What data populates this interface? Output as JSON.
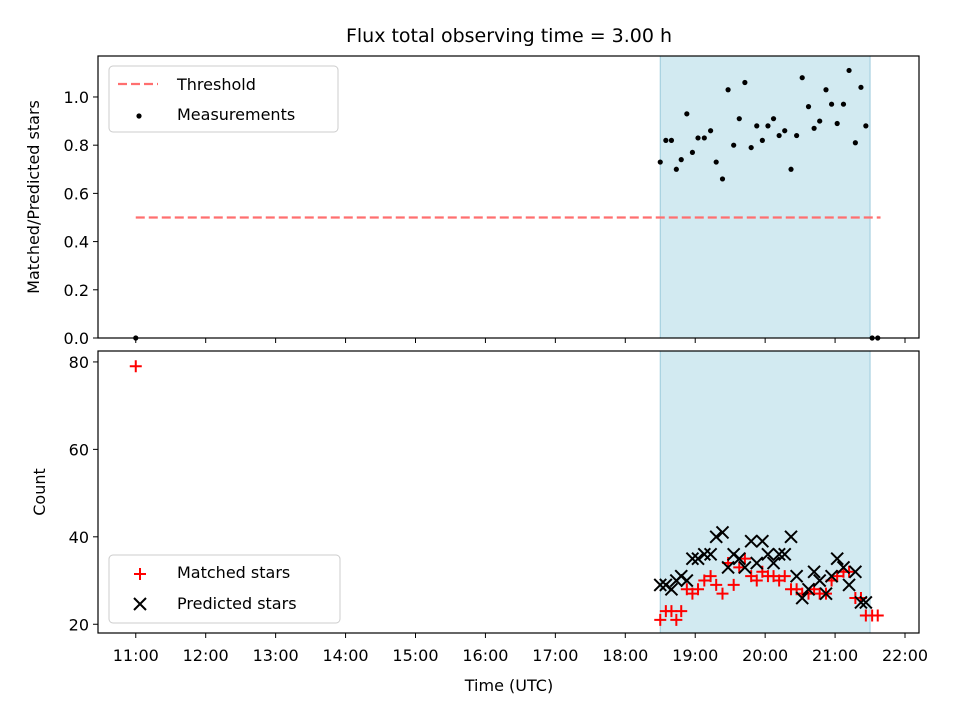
{
  "chart_data": {
    "title": "Flux total observing time = 3.00 h",
    "xlabel": "Time (UTC)",
    "x_tick_labels": [
      "11:00",
      "12:00",
      "13:00",
      "14:00",
      "15:00",
      "16:00",
      "17:00",
      "18:00",
      "19:00",
      "20:00",
      "21:00",
      "22:00"
    ],
    "x_tick_hours": [
      11,
      12,
      13,
      14,
      15,
      16,
      17,
      18,
      19,
      20,
      21,
      22
    ],
    "xlim_hours": [
      10.46,
      22.2
    ],
    "shaded_span_hours": [
      18.5,
      21.5
    ],
    "shaded_color": "#add8e6",
    "panels": [
      {
        "type": "scatter",
        "ylabel": "Matched/Predicted stars",
        "ylim": [
          0,
          1.17
        ],
        "y_ticks": [
          0.0,
          0.2,
          0.4,
          0.6,
          0.8,
          1.0
        ],
        "y_tick_labels": [
          "0.0",
          "0.2",
          "0.4",
          "0.6",
          "0.8",
          "1.0"
        ],
        "legend": {
          "location": "top-left",
          "entries": [
            "Threshold",
            "Measurements"
          ]
        },
        "threshold": {
          "name": "Threshold",
          "value": 0.5,
          "x_range_hours": [
            11.0,
            21.65
          ],
          "color": "#ff6f6f",
          "style": "dashed"
        },
        "series": [
          {
            "name": "Measurements",
            "marker": "dot",
            "color": "#000000",
            "points": [
              [
                11.0,
                0.0
              ],
              [
                18.5,
                0.73
              ],
              [
                18.58,
                0.82
              ],
              [
                18.66,
                0.82
              ],
              [
                18.73,
                0.7
              ],
              [
                18.8,
                0.74
              ],
              [
                18.88,
                0.93
              ],
              [
                18.96,
                0.77
              ],
              [
                19.04,
                0.83
              ],
              [
                19.13,
                0.83
              ],
              [
                19.22,
                0.86
              ],
              [
                19.3,
                0.73
              ],
              [
                19.39,
                0.66
              ],
              [
                19.47,
                1.03
              ],
              [
                19.55,
                0.8
              ],
              [
                19.63,
                0.91
              ],
              [
                19.71,
                1.06
              ],
              [
                19.8,
                0.79
              ],
              [
                19.88,
                0.88
              ],
              [
                19.96,
                0.82
              ],
              [
                20.04,
                0.88
              ],
              [
                20.12,
                0.91
              ],
              [
                20.2,
                0.84
              ],
              [
                20.28,
                0.86
              ],
              [
                20.37,
                0.7
              ],
              [
                20.45,
                0.84
              ],
              [
                20.53,
                1.08
              ],
              [
                20.62,
                0.96
              ],
              [
                20.7,
                0.87
              ],
              [
                20.78,
                0.9
              ],
              [
                20.87,
                1.03
              ],
              [
                20.95,
                0.97
              ],
              [
                21.03,
                0.89
              ],
              [
                21.12,
                0.97
              ],
              [
                21.2,
                1.11
              ],
              [
                21.29,
                0.81
              ],
              [
                21.37,
                1.04
              ],
              [
                21.44,
                0.88
              ],
              [
                21.53,
                0.0
              ],
              [
                21.61,
                0.0
              ]
            ]
          }
        ]
      },
      {
        "type": "scatter",
        "ylabel": "Count",
        "ylim": [
          18,
          82.5
        ],
        "y_ticks": [
          20,
          40,
          60,
          80
        ],
        "y_tick_labels": [
          "20",
          "40",
          "60",
          "80"
        ],
        "legend": {
          "location": "bottom-left",
          "entries": [
            "Matched stars",
            "Predicted stars"
          ]
        },
        "series": [
          {
            "name": "Matched stars",
            "marker": "plus",
            "color": "#ff0000",
            "points": [
              [
                11.0,
                79
              ],
              [
                18.5,
                21
              ],
              [
                18.58,
                23
              ],
              [
                18.66,
                23
              ],
              [
                18.73,
                21
              ],
              [
                18.8,
                23
              ],
              [
                18.88,
                28
              ],
              [
                18.96,
                27
              ],
              [
                19.04,
                28
              ],
              [
                19.13,
                30
              ],
              [
                19.22,
                31
              ],
              [
                19.3,
                29
              ],
              [
                19.39,
                27
              ],
              [
                19.47,
                34
              ],
              [
                19.55,
                29
              ],
              [
                19.63,
                33
              ],
              [
                19.71,
                35
              ],
              [
                19.8,
                31
              ],
              [
                19.88,
                30
              ],
              [
                19.96,
                32
              ],
              [
                20.04,
                31
              ],
              [
                20.12,
                31
              ],
              [
                20.2,
                30
              ],
              [
                20.28,
                31
              ],
              [
                20.37,
                28
              ],
              [
                20.45,
                28
              ],
              [
                20.53,
                27
              ],
              [
                20.62,
                27
              ],
              [
                20.7,
                28
              ],
              [
                20.78,
                27
              ],
              [
                20.87,
                27
              ],
              [
                20.95,
                30
              ],
              [
                21.03,
                31
              ],
              [
                21.12,
                32
              ],
              [
                21.2,
                32
              ],
              [
                21.29,
                26
              ],
              [
                21.37,
                26
              ],
              [
                21.44,
                22
              ],
              [
                21.53,
                22
              ],
              [
                21.61,
                22
              ]
            ]
          },
          {
            "name": "Predicted stars",
            "marker": "x",
            "color": "#000000",
            "points": [
              [
                18.5,
                29
              ],
              [
                18.58,
                29
              ],
              [
                18.66,
                28
              ],
              [
                18.73,
                30
              ],
              [
                18.8,
                31
              ],
              [
                18.88,
                30
              ],
              [
                18.96,
                35
              ],
              [
                19.04,
                35
              ],
              [
                19.13,
                36
              ],
              [
                19.22,
                36
              ],
              [
                19.3,
                40
              ],
              [
                19.39,
                41
              ],
              [
                19.47,
                33
              ],
              [
                19.55,
                36
              ],
              [
                19.63,
                35
              ],
              [
                19.71,
                33
              ],
              [
                19.8,
                39
              ],
              [
                19.88,
                34
              ],
              [
                19.96,
                39
              ],
              [
                20.04,
                36
              ],
              [
                20.12,
                34
              ],
              [
                20.2,
                36
              ],
              [
                20.28,
                36
              ],
              [
                20.37,
                40
              ],
              [
                20.45,
                31
              ],
              [
                20.53,
                26
              ],
              [
                20.62,
                28
              ],
              [
                20.7,
                32
              ],
              [
                20.78,
                30
              ],
              [
                20.87,
                27
              ],
              [
                20.95,
                31
              ],
              [
                21.03,
                35
              ],
              [
                21.12,
                33
              ],
              [
                21.2,
                29
              ],
              [
                21.29,
                32
              ],
              [
                21.37,
                25
              ],
              [
                21.44,
                25
              ]
            ]
          }
        ]
      }
    ]
  }
}
